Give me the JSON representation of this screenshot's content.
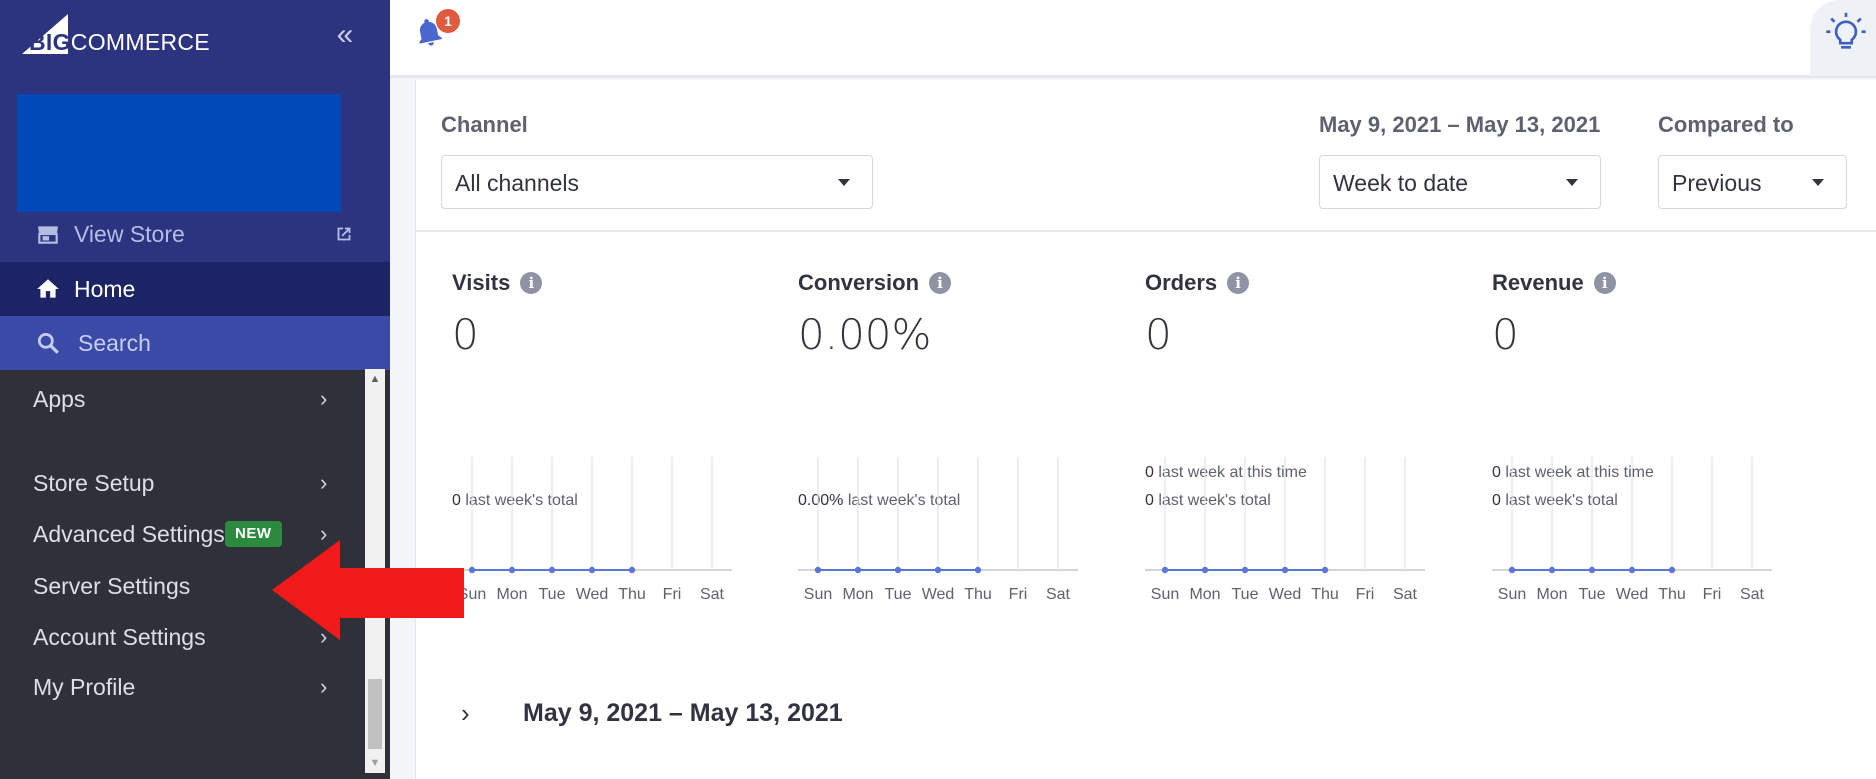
{
  "sidebar": {
    "logo": "BIGCOMMERCE",
    "logo_big": "BIG",
    "logo_commerce": "COMMERCE",
    "collapse_icon": "double-chevron-left-icon",
    "view_store": "View Store",
    "home": "Home",
    "search": "Search",
    "menu": [
      {
        "label": "Apps"
      },
      {
        "label": "Store Setup"
      },
      {
        "label": "Advanced Settings",
        "badge": "NEW"
      },
      {
        "label": "Server Settings"
      },
      {
        "label": "Account Settings"
      },
      {
        "label": "My Profile"
      }
    ]
  },
  "header": {
    "notification_count": "1",
    "bell_icon": "bell-icon",
    "bulb_icon": "lightbulb-icon"
  },
  "filters": {
    "channel_label": "Channel",
    "channel_value": "All channels",
    "date_range_label": "May 9, 2021 – May 13, 2021",
    "period_value": "Week to date",
    "compare_label": "Compared to",
    "compare_value": "Previous"
  },
  "stats": [
    {
      "title": "Visits",
      "value": "0",
      "line1": "",
      "line2": "0 last week's total",
      "l1num": "",
      "l1txt": "",
      "l2num": "0",
      "l2txt": "last week's total"
    },
    {
      "title": "Conversion",
      "value": "0.00%",
      "l1num": "",
      "l1txt": "",
      "l2num": "0.00%",
      "l2txt": "last week's total"
    },
    {
      "title": "Orders",
      "value": "0",
      "l1num": "0",
      "l1txt": "last week at this time",
      "l2num": "0",
      "l2txt": "last week's total"
    },
    {
      "title": "Revenue",
      "value": "0",
      "l1num": "0",
      "l1txt": "last week at this time",
      "l2num": "0",
      "l2txt": "last week's total"
    }
  ],
  "chart_data": [
    {
      "type": "line",
      "title": "Visits",
      "categories": [
        "Sun",
        "Mon",
        "Tue",
        "Wed",
        "Thu",
        "Fri",
        "Sat"
      ],
      "values": [
        0,
        0,
        0,
        0,
        0,
        null,
        null
      ],
      "colors": {
        "line": "#5a77d6",
        "grid": "#e2e4ea"
      }
    },
    {
      "type": "line",
      "title": "Conversion",
      "categories": [
        "Sun",
        "Mon",
        "Tue",
        "Wed",
        "Thu",
        "Fri",
        "Sat"
      ],
      "values": [
        0,
        0,
        0,
        0,
        0,
        null,
        null
      ],
      "colors": {
        "line": "#5a77d6",
        "grid": "#e2e4ea"
      }
    },
    {
      "type": "line",
      "title": "Orders",
      "categories": [
        "Sun",
        "Mon",
        "Tue",
        "Wed",
        "Thu",
        "Fri",
        "Sat"
      ],
      "values": [
        0,
        0,
        0,
        0,
        0,
        null,
        null
      ],
      "colors": {
        "line": "#5a77d6",
        "grid": "#e2e4ea"
      }
    },
    {
      "type": "line",
      "title": "Revenue",
      "categories": [
        "Sun",
        "Mon",
        "Tue",
        "Wed",
        "Thu",
        "Fri",
        "Sat"
      ],
      "values": [
        0,
        0,
        0,
        0,
        0,
        null,
        null
      ],
      "colors": {
        "line": "#5a77d6",
        "grid": "#e2e4ea"
      }
    }
  ],
  "summary": {
    "date_range": "May 9, 2021 – May 13, 2021"
  },
  "colors": {
    "sidebar_top": "#2c3480",
    "sidebar_menu": "#303039",
    "home_active": "#1c2465",
    "search_row": "#3b4aa6",
    "new_badge": "#2b8a3e",
    "annotation_arrow": "#f11a1a"
  }
}
